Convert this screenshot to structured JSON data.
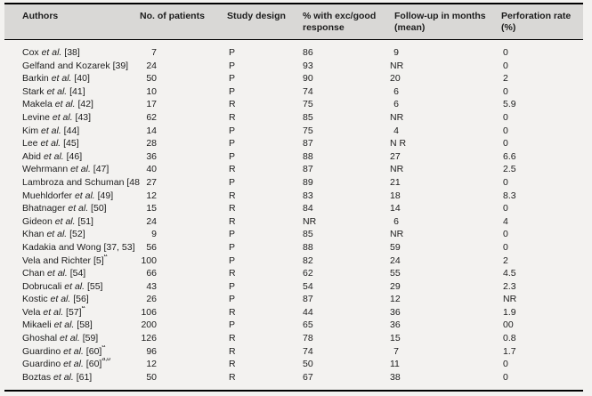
{
  "colors": {
    "page_bg": "#f3f2f0",
    "header_bg": "#d9d8d6",
    "rule": "#000000",
    "text": "#1c1c1c"
  },
  "table": {
    "columns": [
      {
        "id": "authors",
        "label": "Authors"
      },
      {
        "id": "patients",
        "label": "No. of patients"
      },
      {
        "id": "design",
        "label": "Study design"
      },
      {
        "id": "response",
        "label": "% with exc/good response"
      },
      {
        "id": "followup",
        "label": "Follow-up in months (mean)"
      },
      {
        "id": "perforation",
        "label": "Perforation rate (%)"
      }
    ],
    "rows": [
      {
        "authors": {
          "pre": "Cox ",
          "etal": "et al.",
          "post": " [38]",
          "sup": ""
        },
        "patients": "7",
        "design": "P",
        "response": "86",
        "followup": "9",
        "perforation": "0"
      },
      {
        "authors": {
          "pre": "Gelfand and Kozarek",
          "etal": "",
          "post": " [39]",
          "sup": ""
        },
        "patients": "24",
        "design": "P",
        "response": "93",
        "followup": "NR",
        "perforation": "0"
      },
      {
        "authors": {
          "pre": "Barkin ",
          "etal": "et al.",
          "post": " [40]",
          "sup": ""
        },
        "patients": "50",
        "design": "P",
        "response": "90",
        "followup": "20",
        "perforation": "2"
      },
      {
        "authors": {
          "pre": "Stark ",
          "etal": "et al.",
          "post": " [41]",
          "sup": ""
        },
        "patients": "10",
        "design": "P",
        "response": "74",
        "followup": "6",
        "perforation": "0"
      },
      {
        "authors": {
          "pre": "Makela ",
          "etal": "et al.",
          "post": " [42]",
          "sup": ""
        },
        "patients": "17",
        "design": "R",
        "response": "75",
        "followup": "6",
        "perforation": "5.9"
      },
      {
        "authors": {
          "pre": "Levine ",
          "etal": "et al.",
          "post": " [43]",
          "sup": ""
        },
        "patients": "62",
        "design": "R",
        "response": "85",
        "followup": "NR",
        "perforation": "0"
      },
      {
        "authors": {
          "pre": "Kim ",
          "etal": "et al.",
          "post": " [44]",
          "sup": ""
        },
        "patients": "14",
        "design": "P",
        "response": "75",
        "followup": "4",
        "perforation": "0"
      },
      {
        "authors": {
          "pre": "Lee ",
          "etal": "et al.",
          "post": " [45]",
          "sup": ""
        },
        "patients": "28",
        "design": "P",
        "response": "87",
        "followup": "N R",
        "perforation": "0"
      },
      {
        "authors": {
          "pre": "Abid ",
          "etal": "et al.",
          "post": " [46]",
          "sup": ""
        },
        "patients": "36",
        "design": "P",
        "response": "88",
        "followup": "27",
        "perforation": "6.6"
      },
      {
        "authors": {
          "pre": "Wehrmann ",
          "etal": "et al.",
          "post": " [47]",
          "sup": ""
        },
        "patients": "40",
        "design": "R",
        "response": "87",
        "followup": "NR",
        "perforation": "2.5"
      },
      {
        "authors": {
          "pre": "Lambroza and Schuman",
          "etal": "",
          "post": " [48]",
          "sup": ""
        },
        "patients": "27",
        "design": "P",
        "response": "89",
        "followup": "21",
        "perforation": "0"
      },
      {
        "authors": {
          "pre": "Muehldorfer ",
          "etal": "et al.",
          "post": " [49]",
          "sup": ""
        },
        "patients": "12",
        "design": "R",
        "response": "83",
        "followup": "18",
        "perforation": "8.3"
      },
      {
        "authors": {
          "pre": "Bhatnager ",
          "etal": "et al.",
          "post": " [50]",
          "sup": ""
        },
        "patients": "15",
        "design": "R",
        "response": "84",
        "followup": "14",
        "perforation": "0"
      },
      {
        "authors": {
          "pre": "Gideon ",
          "etal": "et al.",
          "post": " [51]",
          "sup": ""
        },
        "patients": "24",
        "design": "R",
        "response": "NR",
        "followup": "6",
        "perforation": "4"
      },
      {
        "authors": {
          "pre": "Khan ",
          "etal": "et al.",
          "post": " [52]",
          "sup": ""
        },
        "patients": "9",
        "design": "P",
        "response": "85",
        "followup": "NR",
        "perforation": "0"
      },
      {
        "authors": {
          "pre": "Kadakia and Wong",
          "etal": "",
          "post": " [37, 53]",
          "sup": ""
        },
        "patients": "56",
        "design": "P",
        "response": "88",
        "followup": "59",
        "perforation": "0"
      },
      {
        "authors": {
          "pre": "Vela and Richter",
          "etal": "",
          "post": " [5]",
          "sup": "a"
        },
        "patients": "100",
        "design": "P",
        "response": "82",
        "followup": "24",
        "perforation": "2"
      },
      {
        "authors": {
          "pre": "Chan ",
          "etal": "et al.",
          "post": " [54]",
          "sup": ""
        },
        "patients": "66",
        "design": "R",
        "response": "62",
        "followup": "55",
        "perforation": "4.5"
      },
      {
        "authors": {
          "pre": "Dobrucali ",
          "etal": "et al.",
          "post": " [55]",
          "sup": ""
        },
        "patients": "43",
        "design": "P",
        "response": "54",
        "followup": "29",
        "perforation": "2.3"
      },
      {
        "authors": {
          "pre": "Kostic ",
          "etal": "et al.",
          "post": " [56]",
          "sup": ""
        },
        "patients": "26",
        "design": "P",
        "response": "87",
        "followup": "12",
        "perforation": "NR"
      },
      {
        "authors": {
          "pre": "Vela ",
          "etal": "et al.",
          "post": " [57]",
          "sup": "a"
        },
        "patients": "106",
        "design": "R",
        "response": "44",
        "followup": "36",
        "perforation": "1.9"
      },
      {
        "authors": {
          "pre": "Mikaeli ",
          "etal": "et al.",
          "post": " [58]",
          "sup": ""
        },
        "patients": "200",
        "design": "P",
        "response": "65",
        "followup": "36",
        "perforation": "00"
      },
      {
        "authors": {
          "pre": "Ghoshal ",
          "etal": "et al.",
          "post": " [59]",
          "sup": ""
        },
        "patients": "126",
        "design": "R",
        "response": "78",
        "followup": "15",
        "perforation": "0.8"
      },
      {
        "authors": {
          "pre": "Guardino ",
          "etal": "et al.",
          "post": " [60]",
          "sup": "a"
        },
        "patients": "96",
        "design": "R",
        "response": "74",
        "followup": "7",
        "perforation": "1.7"
      },
      {
        "authors": {
          "pre": "Guardino ",
          "etal": "et al.",
          "post": " [60]",
          "sup": "a,b"
        },
        "patients": "12",
        "design": "R",
        "response": "50",
        "followup": "11",
        "perforation": "0"
      },
      {
        "authors": {
          "pre": "Boztas ",
          "etal": "et al.",
          "post": " [61]",
          "sup": ""
        },
        "patients": "50",
        "design": "R",
        "response": "67",
        "followup": "38",
        "perforation": "0"
      }
    ]
  }
}
